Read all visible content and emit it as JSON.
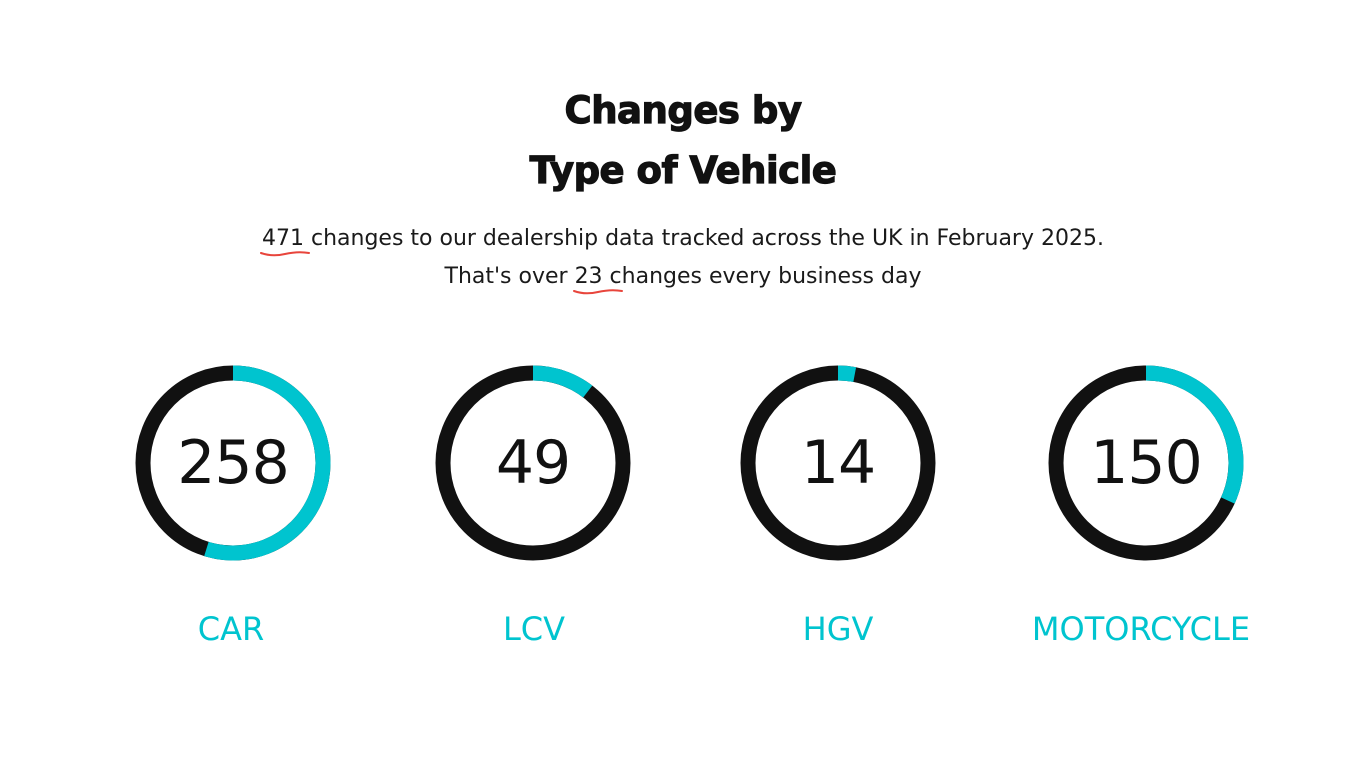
{
  "title": {
    "line1": "Changes by",
    "line2": "Type of Vehicle"
  },
  "summary": {
    "line1_number": "471",
    "line1_text": " changes to our dealership data tracked across the UK in February 2025.",
    "line2_prefix": "That's over ",
    "line2_number": "23",
    "line2_text": " changes every business day"
  },
  "colors": {
    "accent": "#00c4cf",
    "ring": "#111111",
    "highlight": "#e8453c",
    "text": "#111111"
  },
  "chart_data": {
    "type": "donut",
    "total": 471,
    "categories": [
      "CAR",
      "LCV",
      "HGV",
      "MOTORCYCLE"
    ],
    "values": [
      258,
      49,
      14,
      150
    ],
    "display_values": [
      "258",
      "49",
      "14",
      "150"
    ]
  }
}
